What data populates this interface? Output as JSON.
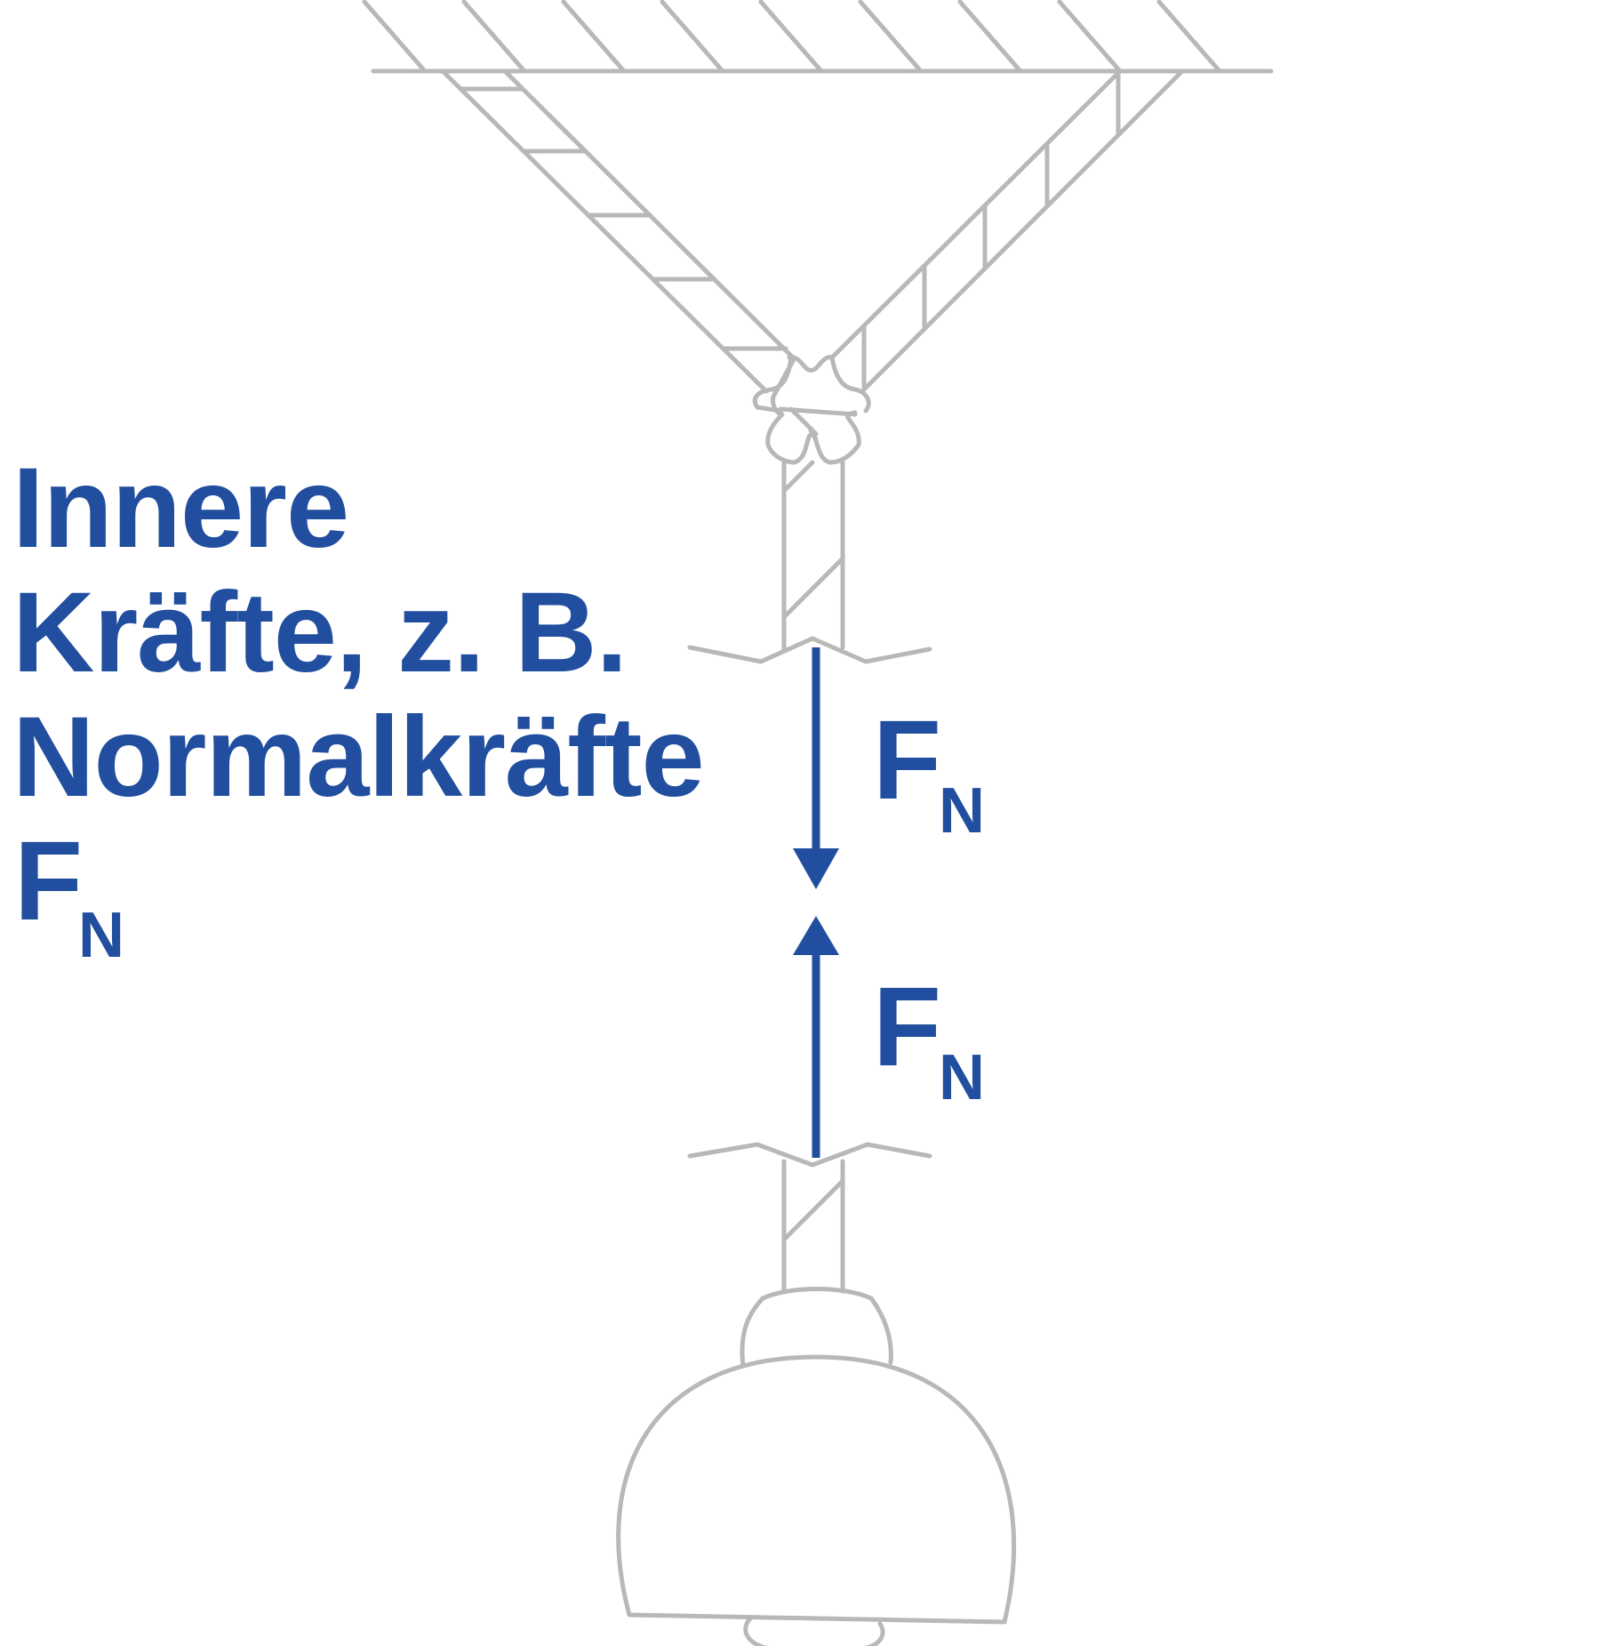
{
  "heading": {
    "lines": [
      "Innere",
      "Kräfte, z. B.",
      "Normalkräfte"
    ],
    "symbol": "F",
    "subscript": "N"
  },
  "force_upper": {
    "symbol": "F",
    "subscript": "N",
    "direction": "down"
  },
  "force_lower": {
    "symbol": "F",
    "subscript": "N",
    "direction": "up"
  },
  "colors": {
    "accent": "#214e9e",
    "line": "#b8b8b8",
    "background": "#ffffff"
  }
}
